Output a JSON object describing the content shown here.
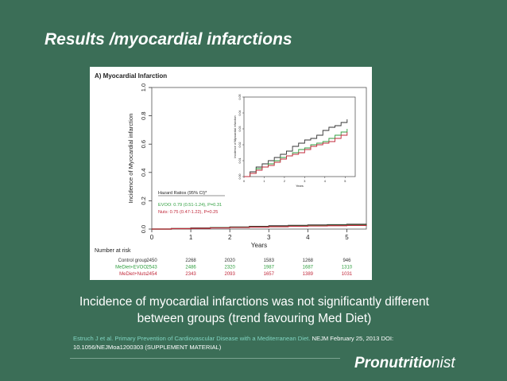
{
  "slide": {
    "title": "Results /myocardial infarctions",
    "caption_line1": "Incidence of myocardial infarctions was not significantly different",
    "caption_line2": "between groups (trend favouring Med Diet)",
    "citation_link": "Estruch J et al. Primary Prevention of Cardiovascular Disease with a Mediterranean Diet.",
    "citation_rest": " NEJM February 25, 2013 DOI:",
    "citation_line2": "10.1056/NEJMoa1200303 (SUPPLEMENT MATERIAL)",
    "logo_bold": "Pronutritio",
    "logo_light": "nist"
  },
  "colors": {
    "background": "#3b6e57",
    "control": "#333333",
    "evoo": "#2e9e3e",
    "nuts": "#c0283a",
    "link": "#7fd3c0"
  },
  "chart_data": {
    "type": "line",
    "title": "A) Myocardial Infarction",
    "xlabel": "Years",
    "ylabel": "Incidence of Myocardial infarction",
    "xlim": [
      0,
      5.5
    ],
    "ylim": [
      0,
      1.0
    ],
    "x_ticks": [
      "0",
      "1",
      "2",
      "3",
      "4",
      "5"
    ],
    "y_ticks": [
      "0.0",
      "0.2",
      "0.4",
      "0.6",
      "0.8",
      "1.0"
    ],
    "series": [
      {
        "name": "Control group",
        "color_key": "control",
        "x": [
          0,
          0.5,
          1,
          1.5,
          2,
          2.5,
          3,
          3.5,
          4,
          4.5,
          5,
          5.5
        ],
        "y": [
          0,
          0.004,
          0.008,
          0.011,
          0.015,
          0.019,
          0.023,
          0.026,
          0.029,
          0.031,
          0.034,
          0.036
        ]
      },
      {
        "name": "MeDiet+EVOO",
        "color_key": "evoo",
        "x": [
          0,
          0.5,
          1,
          1.5,
          2,
          2.5,
          3,
          3.5,
          4,
          4.5,
          5,
          5.5
        ],
        "y": [
          0,
          0.003,
          0.006,
          0.009,
          0.012,
          0.015,
          0.018,
          0.021,
          0.024,
          0.026,
          0.028,
          0.03
        ]
      },
      {
        "name": "MeDiet+Nuts",
        "color_key": "nuts",
        "x": [
          0,
          0.5,
          1,
          1.5,
          2,
          2.5,
          3,
          3.5,
          4,
          4.5,
          5,
          5.5
        ],
        "y": [
          0,
          0.003,
          0.005,
          0.008,
          0.011,
          0.014,
          0.017,
          0.02,
          0.022,
          0.024,
          0.026,
          0.028
        ]
      }
    ],
    "inset": {
      "xlabel": "Years",
      "ylabel": "Incidence of Myocardial infarction",
      "xlim": [
        0,
        5.5
      ],
      "ylim": [
        0,
        0.05
      ],
      "x_ticks": [
        "0",
        "1",
        "2",
        "3",
        "4",
        "5"
      ],
      "y_ticks": [
        "0.00",
        "0.01",
        "0.02",
        "0.03",
        "0.04",
        "0.05"
      ],
      "series": [
        {
          "color_key": "control",
          "x": [
            0,
            0.3,
            0.6,
            0.9,
            1.2,
            1.5,
            1.8,
            2.1,
            2.4,
            2.7,
            3.0,
            3.3,
            3.6,
            3.9,
            4.2,
            4.5,
            4.8,
            5.1
          ],
          "y": [
            0,
            0.003,
            0.006,
            0.008,
            0.01,
            0.012,
            0.014,
            0.016,
            0.019,
            0.021,
            0.023,
            0.024,
            0.026,
            0.029,
            0.031,
            0.032,
            0.034,
            0.036
          ]
        },
        {
          "color_key": "evoo",
          "x": [
            0,
            0.3,
            0.6,
            0.9,
            1.2,
            1.5,
            1.8,
            2.1,
            2.4,
            2.7,
            3.0,
            3.3,
            3.6,
            3.9,
            4.2,
            4.5,
            4.8,
            5.1
          ],
          "y": [
            0,
            0.002,
            0.005,
            0.006,
            0.008,
            0.01,
            0.012,
            0.013,
            0.015,
            0.017,
            0.018,
            0.02,
            0.021,
            0.022,
            0.024,
            0.026,
            0.028,
            0.03
          ]
        },
        {
          "color_key": "nuts",
          "x": [
            0,
            0.3,
            0.6,
            0.9,
            1.2,
            1.5,
            1.8,
            2.1,
            2.4,
            2.7,
            3.0,
            3.3,
            3.6,
            3.9,
            4.2,
            4.5,
            4.8,
            5.1
          ],
          "y": [
            0,
            0.002,
            0.004,
            0.006,
            0.007,
            0.009,
            0.011,
            0.013,
            0.014,
            0.015,
            0.017,
            0.019,
            0.02,
            0.021,
            0.022,
            0.024,
            0.026,
            0.028
          ]
        }
      ]
    },
    "legend": {
      "heading": "Hazard Ratios (95% CI)*",
      "evoo": "EVOO: 0.79 (0.51-1.24), P=0.31",
      "nuts": "Nuts: 0.75 (0.47-1.22), P=0.25"
    },
    "at_risk": {
      "heading": "Number at risk",
      "rows": [
        {
          "label": "Control group",
          "color_key": "control",
          "values": [
            "2450",
            "2268",
            "2020",
            "1583",
            "1268",
            "946"
          ]
        },
        {
          "label": "MeDiet+EVOO",
          "color_key": "evoo",
          "values": [
            "2543",
            "2486",
            "2320",
            "1987",
            "1687",
            "1310"
          ]
        },
        {
          "label": "MeDiet+Nuts",
          "color_key": "nuts",
          "values": [
            "2454",
            "2343",
            "2093",
            "1657",
            "1389",
            "1031"
          ]
        }
      ]
    }
  }
}
